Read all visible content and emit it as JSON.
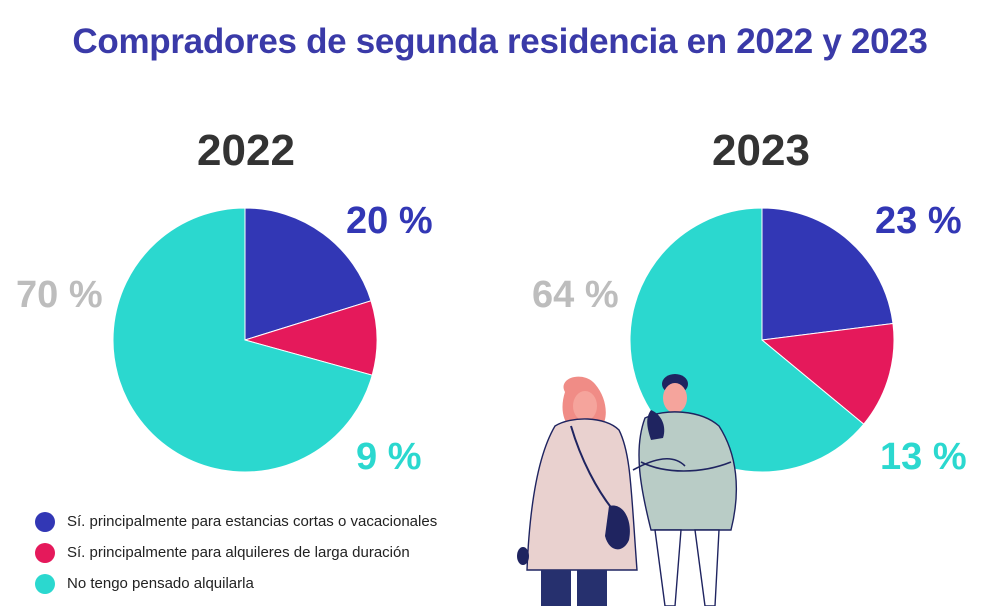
{
  "chart_data": {
    "type": "pie",
    "title": "Compradores de segunda residencia en 2022 y 2023",
    "categories": [
      "Sí. principalmente para estancias cortas o vacacionales",
      "Sí. principalmente para alquileres de larga duración",
      "No tengo pensado alquilarla"
    ],
    "colors": [
      "#3237b5",
      "#e5195b",
      "#2bd8cf"
    ],
    "series": [
      {
        "name": "2022",
        "values": [
          20,
          9,
          70
        ],
        "labels": [
          "20 %",
          "9 %",
          "70 %"
        ]
      },
      {
        "name": "2023",
        "values": [
          23,
          13,
          64
        ],
        "labels": [
          "23 %",
          "13 %",
          "64 %"
        ]
      }
    ],
    "legend": "bottom-left"
  },
  "label_colors": [
    "#3237b5",
    "#2bd8cf",
    "#bdbdbd"
  ]
}
